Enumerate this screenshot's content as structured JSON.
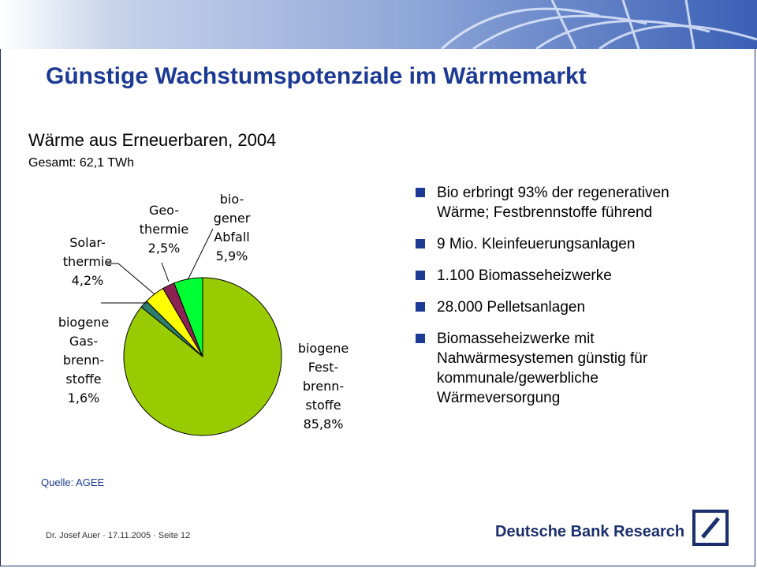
{
  "header": {
    "title": "Günstige Wachstumspotenziale im Wärmemarkt"
  },
  "chart_data": {
    "type": "pie",
    "title": "Wärme aus Erneuerbaren, 2004",
    "subtitle": "Gesamt: 62,1 TWh",
    "slices": [
      {
        "label_lines": [
          "biogene",
          "Fest-",
          "brenn-",
          "stoffe"
        ],
        "value": 85.8,
        "value_label": "85,8%",
        "color": "#99cc00"
      },
      {
        "label_lines": [
          "biogene",
          "Gas-",
          "brenn-",
          "stoffe"
        ],
        "value": 1.6,
        "value_label": "1,6%",
        "color": "#2e7d6b"
      },
      {
        "label_lines": [
          "Solar-",
          "thermie"
        ],
        "value": 4.2,
        "value_label": "4,2%",
        "color": "#ffff00"
      },
      {
        "label_lines": [
          "Geo-",
          "thermie"
        ],
        "value": 2.5,
        "value_label": "2,5%",
        "color": "#8b2252"
      },
      {
        "label_lines": [
          "bio-",
          "gener",
          "Abfall"
        ],
        "value": 5.9,
        "value_label": "5,9%",
        "color": "#00ff33"
      }
    ]
  },
  "bullets": [
    "Bio erbringt 93% der regenerativen Wärme; Festbrennstoffe führend",
    "9 Mio. Kleinfeuerungsanlagen",
    "1.100 Biomasseheizwerke",
    "28.000 Pelletsanlagen",
    "Biomasseheizwerke mit Nahwärmesystemen günstig für kommunale/gewerbliche Wärmeversorgung"
  ],
  "source": "Quelle: AGEE",
  "footer": "Dr. Josef Auer · 17.11.2005 · Seite 12",
  "brand": "Deutsche Bank Research",
  "colors": {
    "title": "#1c3a94",
    "bullet": "#1c3a94",
    "brand": "#1b2f6e"
  }
}
